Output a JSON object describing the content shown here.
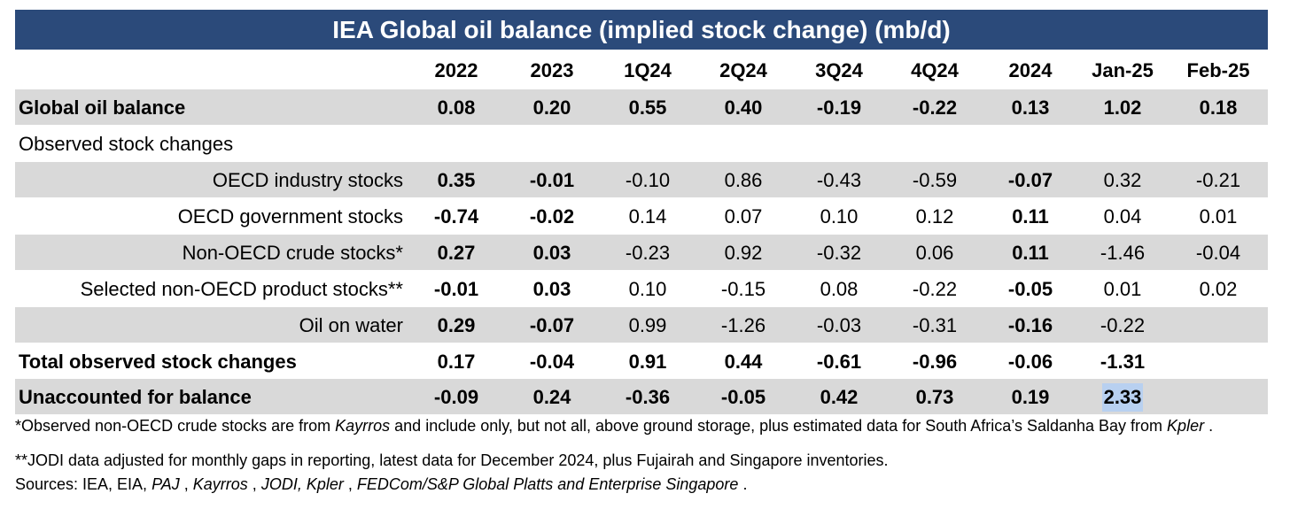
{
  "title": "IEA Global oil balance (implied stock change) (mb/d)",
  "columns": [
    "2022",
    "2023",
    "1Q24",
    "2Q24",
    "3Q24",
    "4Q24",
    "2024",
    "Jan-25",
    "Feb-25"
  ],
  "rows": [
    {
      "label": "Global oil balance",
      "style": "bold-left",
      "shaded": true,
      "values": [
        "0.08",
        "0.20",
        "0.55",
        "0.40",
        "-0.19",
        "-0.22",
        "0.13",
        "1.02",
        "0.18"
      ],
      "bold": [
        true,
        true,
        true,
        true,
        true,
        true,
        true,
        true,
        true
      ]
    },
    {
      "label": "Observed stock changes",
      "style": "plain-left",
      "shaded": false,
      "values": [
        "",
        "",
        "",
        "",
        "",
        "",
        "",
        "",
        ""
      ],
      "bold": [
        false,
        false,
        false,
        false,
        false,
        false,
        false,
        false,
        false
      ]
    },
    {
      "label": "OECD industry stocks",
      "style": "plain-right",
      "shaded": true,
      "values": [
        "0.35",
        "-0.01",
        "-0.10",
        "0.86",
        "-0.43",
        "-0.59",
        "-0.07",
        "0.32",
        "-0.21"
      ],
      "bold": [
        true,
        true,
        false,
        false,
        false,
        false,
        true,
        false,
        false
      ]
    },
    {
      "label": "OECD government stocks",
      "style": "plain-right",
      "shaded": false,
      "values": [
        "-0.74",
        "-0.02",
        "0.14",
        "0.07",
        "0.10",
        "0.12",
        "0.11",
        "0.04",
        "0.01"
      ],
      "bold": [
        true,
        true,
        false,
        false,
        false,
        false,
        true,
        false,
        false
      ]
    },
    {
      "label": "Non-OECD crude stocks*",
      "style": "plain-right",
      "shaded": true,
      "values": [
        "0.27",
        "0.03",
        "-0.23",
        "0.92",
        "-0.32",
        "0.06",
        "0.11",
        "-1.46",
        "-0.04"
      ],
      "bold": [
        true,
        true,
        false,
        false,
        false,
        false,
        true,
        false,
        false
      ]
    },
    {
      "label": "Selected non-OECD product stocks**",
      "style": "plain-right",
      "shaded": false,
      "values": [
        "-0.01",
        "0.03",
        "0.10",
        "-0.15",
        "0.08",
        "-0.22",
        "-0.05",
        "0.01",
        "0.02"
      ],
      "bold": [
        true,
        true,
        false,
        false,
        false,
        false,
        true,
        false,
        false
      ]
    },
    {
      "label": "Oil on water",
      "style": "plain-right",
      "shaded": true,
      "values": [
        "0.29",
        "-0.07",
        "0.99",
        "-1.26",
        "-0.03",
        "-0.31",
        "-0.16",
        "-0.22",
        ""
      ],
      "bold": [
        true,
        true,
        false,
        false,
        false,
        false,
        true,
        false,
        false
      ]
    },
    {
      "label": "Total observed stock changes",
      "style": "bold-left",
      "shaded": false,
      "values": [
        "0.17",
        "-0.04",
        "0.91",
        "0.44",
        "-0.61",
        "-0.96",
        "-0.06",
        "-1.31",
        ""
      ],
      "bold": [
        true,
        true,
        true,
        true,
        true,
        true,
        true,
        true,
        true
      ]
    },
    {
      "label": "Unaccounted for balance",
      "style": "bold-left",
      "shaded": true,
      "values": [
        "-0.09",
        "0.24",
        "-0.36",
        "-0.05",
        "0.42",
        "0.73",
        "0.19",
        "2.33",
        ""
      ],
      "bold": [
        true,
        true,
        true,
        true,
        true,
        true,
        true,
        true,
        true
      ],
      "highlight_index": 7
    }
  ],
  "notes": {
    "note1": [
      {
        "text": "*Observed non-OECD crude stocks are from ",
        "italic": false
      },
      {
        "text": "Kayrros",
        "italic": true
      },
      {
        "text": "  and include only, but not all, above ground storage, plus estimated data for South Africa’s Saldanha Bay from ",
        "italic": false
      },
      {
        "text": "Kpler",
        "italic": true
      },
      {
        "text": " .",
        "italic": false
      }
    ],
    "note2": [
      {
        "text": "**JODI data adjusted for monthly gaps in reporting, latest data for December 2024, plus Fujairah and Singapore inventories.",
        "italic": false
      }
    ],
    "sources": [
      {
        "text": "Sources: IEA, EIA, ",
        "italic": false
      },
      {
        "text": "PAJ",
        "italic": true
      },
      {
        "text": " , ",
        "italic": false
      },
      {
        "text": "Kayrros",
        "italic": true
      },
      {
        "text": " , ",
        "italic": false
      },
      {
        "text": "JODI, ",
        "italic": true
      },
      {
        "text": " ",
        "italic": false
      },
      {
        "text": "Kpler",
        "italic": true
      },
      {
        "text": " , ",
        "italic": false
      },
      {
        "text": "FEDCom/S&P Global Platts and ",
        "italic": true
      },
      {
        "text": " ",
        "italic": false
      },
      {
        "text": "Enterprise Singapore",
        "italic": true
      },
      {
        "text": " .",
        "italic": false
      }
    ]
  },
  "colors": {
    "title_bg": "#2b4a7a",
    "shade": "#d9d9d9",
    "highlight": "#b8d0f0"
  }
}
